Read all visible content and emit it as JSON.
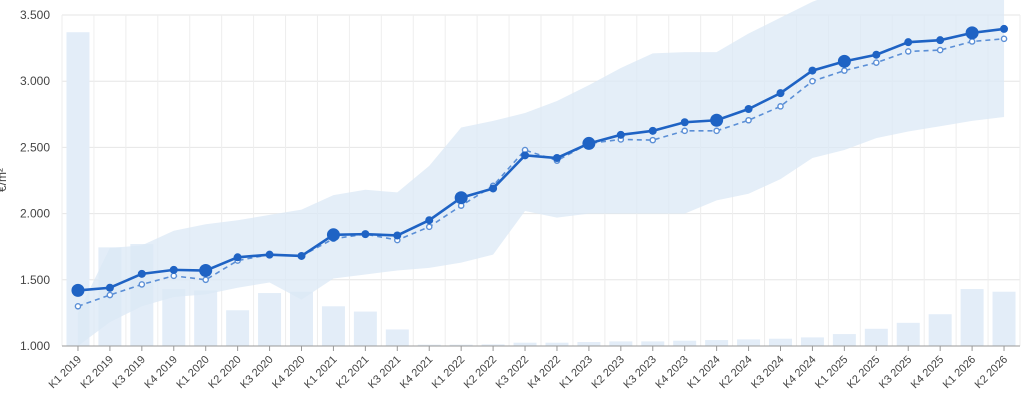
{
  "chart_data": {
    "type": "line",
    "ylabel": "€/m²",
    "ylim": [
      1000,
      3500
    ],
    "y_ticks": [
      "1.000",
      "1.500",
      "2.000",
      "2.500",
      "3.000",
      "3.500"
    ],
    "grid": true,
    "categories": [
      "K1 2019",
      "K2 2019",
      "K3 2019",
      "K4 2019",
      "K1 2020",
      "K2 2020",
      "K3 2020",
      "K4 2020",
      "K1 2021",
      "K2 2021",
      "K3 2021",
      "K4 2021",
      "K1 2022",
      "K2 2022",
      "K3 2022",
      "K4 2022",
      "K1 2023",
      "K2 2023",
      "K3 2023",
      "K4 2023",
      "K1 2024",
      "K2 2024",
      "K3 2024",
      "K4 2024",
      "K1 2025",
      "K2 2025",
      "K3 2025",
      "K4 2025",
      "K1 2026",
      "K2 2026"
    ],
    "series": [
      {
        "style": "solid",
        "color": "#1f63c4",
        "values": [
          1420,
          1440,
          1545,
          1575,
          1570,
          1670,
          1690,
          1680,
          1840,
          1845,
          1835,
          1950,
          2120,
          2190,
          2440,
          2420,
          2530,
          2595,
          2625,
          2690,
          2705,
          2790,
          2910,
          3080,
          3150,
          3200,
          3295,
          3310,
          3365,
          3395
        ],
        "large_markers": [
          0,
          4,
          8,
          12,
          16,
          20,
          24,
          28
        ]
      },
      {
        "style": "dashed",
        "color": "#5b8fd6",
        "values": [
          1300,
          1385,
          1465,
          1530,
          1500,
          1645,
          1690,
          1680,
          1810,
          1845,
          1800,
          1900,
          2060,
          2210,
          2480,
          2400,
          2530,
          2560,
          2555,
          2625,
          2625,
          2705,
          2810,
          3000,
          3080,
          3140,
          3225,
          3235,
          3300,
          3320
        ]
      },
      {
        "style": "band",
        "color": "#dbe8f6",
        "upper": [
          1250,
          1740,
          1760,
          1870,
          1920,
          1950,
          1990,
          2030,
          2140,
          2180,
          2160,
          2360,
          2650,
          2700,
          2760,
          2850,
          2970,
          3100,
          3210,
          3220,
          3220,
          3360,
          3480,
          3600,
          3690,
          3760,
          3840,
          3900,
          3960,
          3990
        ],
        "lower": [
          1000,
          1180,
          1300,
          1370,
          1390,
          1440,
          1480,
          1350,
          1510,
          1540,
          1570,
          1590,
          1630,
          1690,
          2020,
          1970,
          2000,
          2000,
          2000,
          2000,
          2100,
          2150,
          2260,
          2420,
          2480,
          2570,
          2620,
          2660,
          2700,
          2730
        ]
      }
    ],
    "bars": {
      "color": "#e3edf8",
      "values": [
        3370,
        1745,
        1770,
        1430,
        1420,
        1270,
        1400,
        1410,
        1300,
        1260,
        1125,
        1010,
        1010,
        1012,
        1025,
        1025,
        1030,
        1035,
        1035,
        1040,
        1045,
        1050,
        1055,
        1065,
        1090,
        1130,
        1175,
        1240,
        1430,
        1410
      ]
    }
  }
}
